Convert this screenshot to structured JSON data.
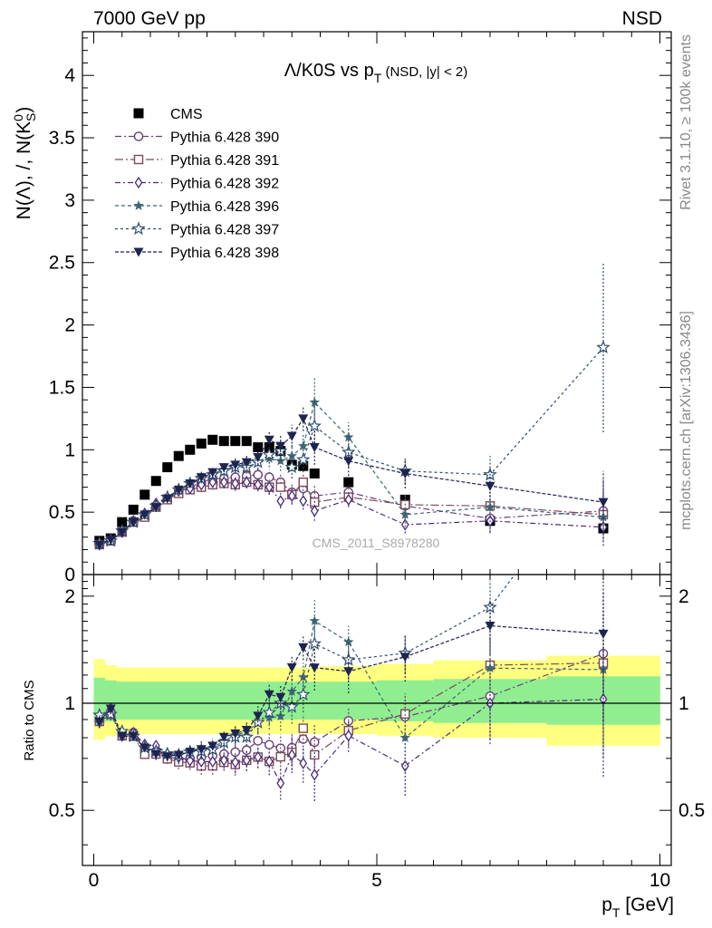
{
  "header": {
    "left": "7000 GeV pp",
    "right": "NSD",
    "side_top": "Rivet 3.1.10, ≥ 100k events",
    "side_bottom": "mcplots.cern.ch [arXiv:1306.3436]",
    "watermark": "CMS_2011_S8978280"
  },
  "colors": {
    "cms": "#000000",
    "p390": "#6b3f7a",
    "p391": "#7a4a5a",
    "p392": "#4a2a80",
    "p396": "#3f6672",
    "p397": "#2e4e6e",
    "p398": "#1e2350",
    "band_yellow": "#ffff80",
    "band_green": "#90ee90"
  },
  "chart_data": [
    {
      "type": "scatter",
      "panel": "main",
      "title": "Λ/K0S vs p_T (NSD, |y| < 2)",
      "title_main": "Λ/K0S vs p",
      "title_sub": "T",
      "title_rest": " (NSD, |y| < 2)",
      "ylabel": "N(Λ), /, N(K⁰_S)",
      "xlim": [
        -0.2,
        10.2
      ],
      "ylim": [
        0,
        4.35
      ],
      "yticks": [
        0,
        0.5,
        1,
        1.5,
        2,
        2.5,
        3,
        3.5,
        4
      ],
      "ytick_labels": [
        "0",
        "0.5",
        "1",
        "1.5",
        "2",
        "2.5",
        "3",
        "3.5",
        "4"
      ],
      "legend_position": "top-left",
      "series": [
        {
          "name": "CMS",
          "key": "cms",
          "marker": "filled-square",
          "x": [
            0.1,
            0.3,
            0.5,
            0.7,
            0.9,
            1.1,
            1.3,
            1.5,
            1.7,
            1.9,
            2.1,
            2.3,
            2.5,
            2.7,
            2.9,
            3.1,
            3.3,
            3.5,
            3.7,
            3.9,
            4.5,
            5.5,
            7.0,
            9.0
          ],
          "y": [
            0.27,
            0.29,
            0.42,
            0.52,
            0.64,
            0.75,
            0.86,
            0.95,
            1.0,
            1.05,
            1.08,
            1.07,
            1.07,
            1.07,
            1.02,
            1.02,
            0.99,
            0.88,
            0.87,
            0.81,
            0.74,
            0.6,
            0.43,
            0.37
          ],
          "err": [
            0,
            0,
            0,
            0,
            0,
            0,
            0,
            0,
            0,
            0,
            0,
            0,
            0,
            0,
            0,
            0,
            0,
            0,
            0,
            0,
            0,
            0,
            0,
            0
          ]
        },
        {
          "name": "Pythia 6.428 390",
          "key": "p390",
          "marker": "open-circle",
          "dash": "7,3,2,3",
          "x": [
            0.1,
            0.3,
            0.5,
            0.7,
            0.9,
            1.1,
            1.3,
            1.5,
            1.7,
            1.9,
            2.1,
            2.3,
            2.5,
            2.7,
            2.9,
            3.1,
            3.3,
            3.5,
            3.7,
            3.9,
            4.5,
            5.5,
            7.0,
            9.0
          ],
          "y": [
            0.24,
            0.27,
            0.34,
            0.43,
            0.48,
            0.55,
            0.61,
            0.66,
            0.7,
            0.74,
            0.77,
            0.77,
            0.78,
            0.79,
            0.8,
            0.78,
            0.74,
            0.66,
            0.69,
            0.63,
            0.66,
            0.55,
            0.45,
            0.51
          ],
          "err": [
            0.01,
            0.01,
            0.01,
            0.01,
            0.01,
            0.02,
            0.02,
            0.03,
            0.03,
            0.04,
            0.04,
            0.05,
            0.05,
            0.05,
            0.06,
            0.06,
            0.07,
            0.07,
            0.08,
            0.08,
            0.06,
            0.08,
            0.12,
            0.25
          ]
        },
        {
          "name": "Pythia 6.428 391",
          "key": "p391",
          "marker": "open-square",
          "dash": "9,3,2,3",
          "x": [
            0.1,
            0.3,
            0.5,
            0.7,
            0.9,
            1.1,
            1.3,
            1.5,
            1.7,
            1.9,
            2.1,
            2.3,
            2.5,
            2.7,
            2.9,
            3.1,
            3.3,
            3.5,
            3.7,
            3.9,
            4.5,
            5.5,
            7.0,
            9.0
          ],
          "y": [
            0.24,
            0.27,
            0.34,
            0.42,
            0.46,
            0.54,
            0.6,
            0.65,
            0.68,
            0.7,
            0.72,
            0.73,
            0.72,
            0.74,
            0.72,
            0.7,
            0.7,
            0.64,
            0.74,
            0.58,
            0.62,
            0.56,
            0.55,
            0.48
          ],
          "err": [
            0.01,
            0.01,
            0.01,
            0.01,
            0.01,
            0.02,
            0.02,
            0.03,
            0.03,
            0.04,
            0.04,
            0.04,
            0.05,
            0.05,
            0.05,
            0.06,
            0.06,
            0.07,
            0.07,
            0.08,
            0.06,
            0.08,
            0.1,
            0.2
          ]
        },
        {
          "name": "Pythia 6.428 392",
          "key": "p392",
          "marker": "open-diamond",
          "dash": "6,3,2,3",
          "x": [
            0.1,
            0.3,
            0.5,
            0.7,
            0.9,
            1.1,
            1.3,
            1.5,
            1.7,
            1.9,
            2.1,
            2.3,
            2.5,
            2.7,
            2.9,
            3.1,
            3.3,
            3.5,
            3.7,
            3.9,
            4.5,
            5.5,
            7.0,
            9.0
          ],
          "y": [
            0.24,
            0.28,
            0.34,
            0.43,
            0.49,
            0.57,
            0.62,
            0.67,
            0.69,
            0.72,
            0.74,
            0.74,
            0.73,
            0.74,
            0.72,
            0.7,
            0.59,
            0.63,
            0.59,
            0.51,
            0.6,
            0.4,
            0.43,
            0.38
          ],
          "err": [
            0.01,
            0.01,
            0.01,
            0.01,
            0.01,
            0.02,
            0.02,
            0.03,
            0.03,
            0.04,
            0.04,
            0.04,
            0.05,
            0.05,
            0.05,
            0.06,
            0.06,
            0.07,
            0.07,
            0.08,
            0.06,
            0.07,
            0.09,
            0.15
          ]
        },
        {
          "name": "Pythia 6.428 396",
          "key": "p396",
          "marker": "filled-star",
          "dash": "4,3",
          "x": [
            0.1,
            0.3,
            0.5,
            0.7,
            0.9,
            1.1,
            1.3,
            1.5,
            1.7,
            1.9,
            2.1,
            2.3,
            2.5,
            2.7,
            2.9,
            3.1,
            3.3,
            3.5,
            3.7,
            3.9,
            4.5,
            5.5,
            7.0,
            9.0
          ],
          "y": [
            0.24,
            0.27,
            0.34,
            0.42,
            0.48,
            0.55,
            0.62,
            0.68,
            0.73,
            0.78,
            0.81,
            0.84,
            0.87,
            0.89,
            0.9,
            0.93,
            0.91,
            0.95,
            1.03,
            1.38,
            1.1,
            0.48,
            0.54,
            0.46
          ],
          "err": [
            0.01,
            0.01,
            0.01,
            0.01,
            0.01,
            0.02,
            0.02,
            0.03,
            0.03,
            0.04,
            0.04,
            0.04,
            0.05,
            0.05,
            0.06,
            0.07,
            0.08,
            0.09,
            0.1,
            0.2,
            0.12,
            0.1,
            0.12,
            0.2
          ]
        },
        {
          "name": "Pythia 6.428 397",
          "key": "p397",
          "marker": "open-star",
          "dash": "3,3",
          "x": [
            0.1,
            0.3,
            0.5,
            0.7,
            0.9,
            1.1,
            1.3,
            1.5,
            1.7,
            1.9,
            2.1,
            2.3,
            2.5,
            2.7,
            2.9,
            3.1,
            3.3,
            3.5,
            3.7,
            3.9,
            4.5,
            5.5,
            7.0,
            9.0
          ],
          "y": [
            0.25,
            0.27,
            0.35,
            0.42,
            0.48,
            0.55,
            0.62,
            0.68,
            0.73,
            0.77,
            0.8,
            0.83,
            0.86,
            0.86,
            0.9,
            0.96,
            0.99,
            0.86,
            0.92,
            1.19,
            0.98,
            0.83,
            0.8,
            1.82
          ],
          "err": [
            0.01,
            0.01,
            0.01,
            0.01,
            0.01,
            0.02,
            0.02,
            0.03,
            0.03,
            0.04,
            0.04,
            0.04,
            0.05,
            0.05,
            0.06,
            0.07,
            0.08,
            0.09,
            0.1,
            0.2,
            0.12,
            0.1,
            0.15,
            0.68
          ]
        },
        {
          "name": "Pythia 6.428 398",
          "key": "p398",
          "marker": "filled-triangle-down",
          "dash": "4,2",
          "x": [
            0.1,
            0.3,
            0.5,
            0.7,
            0.9,
            1.1,
            1.3,
            1.5,
            1.7,
            1.9,
            2.1,
            2.3,
            2.5,
            2.7,
            2.9,
            3.1,
            3.3,
            3.5,
            3.7,
            3.9,
            4.5,
            5.5,
            7.0,
            9.0
          ],
          "y": [
            0.24,
            0.28,
            0.34,
            0.42,
            0.48,
            0.54,
            0.61,
            0.68,
            0.73,
            0.78,
            0.82,
            0.86,
            0.88,
            0.9,
            0.94,
            1.08,
            1.03,
            1.11,
            1.25,
            1.02,
            0.91,
            0.81,
            0.71,
            0.58
          ],
          "err": [
            0.01,
            0.01,
            0.01,
            0.01,
            0.01,
            0.02,
            0.02,
            0.03,
            0.03,
            0.04,
            0.04,
            0.04,
            0.05,
            0.05,
            0.06,
            0.07,
            0.08,
            0.09,
            0.1,
            0.14,
            0.12,
            0.12,
            0.12,
            0.25
          ]
        }
      ]
    },
    {
      "type": "scatter",
      "panel": "ratio",
      "ylabel": "Ratio to CMS",
      "xlabel": "p_T [GeV]",
      "xlabel_main": "p",
      "xlabel_sub": "T",
      "xlabel_rest": " [GeV]",
      "xlim": [
        -0.2,
        10.2
      ],
      "ylim": [
        0.35,
        2.3
      ],
      "xticks": [
        0,
        5,
        10
      ],
      "xtick_labels": [
        "0",
        "5",
        "10"
      ],
      "yticks": [
        0.5,
        1,
        2
      ],
      "ytick_labels": [
        "0.5",
        "1",
        "2"
      ],
      "band_edges": [
        0,
        0.2,
        0.4,
        0.6,
        0.8,
        1.0,
        1.2,
        1.4,
        1.6,
        1.8,
        2.0,
        2.2,
        2.4,
        2.6,
        2.8,
        3.0,
        3.2,
        3.4,
        3.6,
        3.8,
        4.0,
        5.0,
        6.0,
        8.0,
        10.0
      ],
      "yellow_band": [
        [
          0.79,
          1.33
        ],
        [
          0.81,
          1.28
        ],
        [
          0.82,
          1.26
        ],
        [
          0.82,
          1.26
        ],
        [
          0.82,
          1.26
        ],
        [
          0.82,
          1.26
        ],
        [
          0.82,
          1.26
        ],
        [
          0.82,
          1.26
        ],
        [
          0.82,
          1.26
        ],
        [
          0.82,
          1.26
        ],
        [
          0.82,
          1.26
        ],
        [
          0.82,
          1.26
        ],
        [
          0.82,
          1.26
        ],
        [
          0.82,
          1.26
        ],
        [
          0.82,
          1.26
        ],
        [
          0.82,
          1.26
        ],
        [
          0.82,
          1.26
        ],
        [
          0.82,
          1.26
        ],
        [
          0.82,
          1.26
        ],
        [
          0.82,
          1.26
        ],
        [
          0.82,
          1.27
        ],
        [
          0.81,
          1.29
        ],
        [
          0.8,
          1.32
        ],
        [
          0.76,
          1.36
        ]
      ],
      "green_band": [
        [
          0.88,
          1.18
        ],
        [
          0.89,
          1.16
        ],
        [
          0.9,
          1.15
        ],
        [
          0.9,
          1.15
        ],
        [
          0.9,
          1.15
        ],
        [
          0.9,
          1.15
        ],
        [
          0.9,
          1.15
        ],
        [
          0.9,
          1.15
        ],
        [
          0.9,
          1.15
        ],
        [
          0.9,
          1.15
        ],
        [
          0.9,
          1.15
        ],
        [
          0.9,
          1.15
        ],
        [
          0.9,
          1.15
        ],
        [
          0.9,
          1.15
        ],
        [
          0.9,
          1.15
        ],
        [
          0.9,
          1.15
        ],
        [
          0.9,
          1.15
        ],
        [
          0.9,
          1.15
        ],
        [
          0.9,
          1.15
        ],
        [
          0.9,
          1.15
        ],
        [
          0.9,
          1.15
        ],
        [
          0.89,
          1.16
        ],
        [
          0.88,
          1.17
        ],
        [
          0.87,
          1.19
        ]
      ]
    }
  ]
}
